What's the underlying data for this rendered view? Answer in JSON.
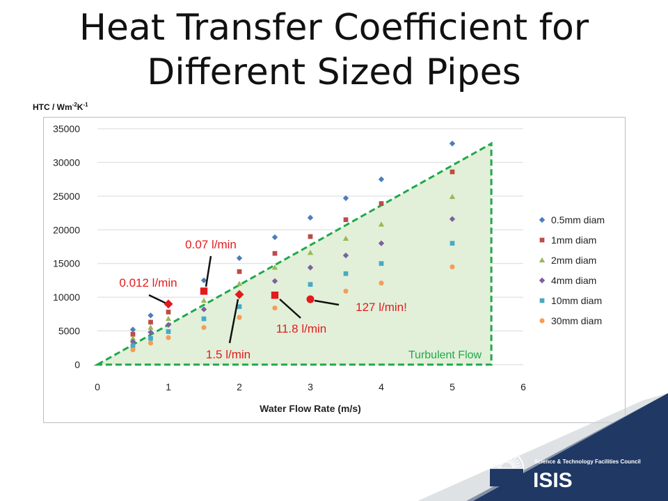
{
  "slide": {
    "title_line1": "Heat Transfer Coefficient for",
    "title_line2": "Different Sized Pipes",
    "y_unit_base": "HTC / Wm",
    "y_unit_sup1": "-2",
    "y_unit_mid": "K",
    "y_unit_sup2": "-1"
  },
  "logo": {
    "org_name": "Science & Technology Facilities Council",
    "brand": "ISIS"
  },
  "colors": {
    "series_0_5mm": "#4a7ebb",
    "series_1mm": "#be4b48",
    "series_2mm": "#98b954",
    "series_4mm": "#7d60a0",
    "series_10mm": "#46aac5",
    "series_30mm": "#f59d56",
    "annotation_red": "#e31a1c",
    "turbulent_fill": "#e2f0d9",
    "turbulent_line": "#1fa84a",
    "band_dark": "#1f3864",
    "band_grey": "#808a94"
  },
  "chart_data": {
    "type": "scatter",
    "xlabel": "Water Flow Rate (m/s)",
    "ylabel": "HTC / Wm-2K-1",
    "xlim": [
      0,
      6
    ],
    "ylim": [
      0,
      35000
    ],
    "xticks": [
      "0",
      "1",
      "2",
      "3",
      "4",
      "5",
      "6"
    ],
    "yticks": [
      "0",
      "5000",
      "10000",
      "15000",
      "20000",
      "25000",
      "30000",
      "35000"
    ],
    "grid": "horizontal",
    "legend_position": "right",
    "x": [
      0.5,
      0.75,
      1,
      1.5,
      2,
      2.5,
      3,
      3.5,
      4,
      5
    ],
    "series": [
      {
        "name": "0.5mm diam",
        "marker": "diamond",
        "values": [
          5200,
          7300,
          9000,
          12500,
          15800,
          18900,
          21800,
          24700,
          27500,
          32800
        ]
      },
      {
        "name": "1mm diam",
        "marker": "square",
        "values": [
          4500,
          6300,
          7800,
          10900,
          13800,
          16500,
          19000,
          21500,
          23900,
          28600
        ]
      },
      {
        "name": "2mm diam",
        "marker": "triangle",
        "values": [
          3900,
          5500,
          6800,
          9500,
          12000,
          14400,
          16600,
          18700,
          20800,
          24900
        ]
      },
      {
        "name": "4mm diam",
        "marker": "diamond",
        "values": [
          3400,
          4800,
          5900,
          8200,
          10400,
          12400,
          14400,
          16200,
          18000,
          21600
        ]
      },
      {
        "name": "10mm diam",
        "marker": "square",
        "values": [
          2800,
          3900,
          4900,
          6800,
          8600,
          10300,
          11900,
          13500,
          15000,
          18000
        ]
      },
      {
        "name": "30mm diam",
        "marker": "circle",
        "values": [
          2200,
          3200,
          4000,
          5500,
          7000,
          8400,
          9700,
          10900,
          12100,
          14500
        ]
      }
    ],
    "highlighted_points": [
      {
        "label": "0.012 l/min",
        "x": 1,
        "y": 9000,
        "marker": "diamond"
      },
      {
        "label": "0.07 l/min",
        "x": 1.5,
        "y": 10900,
        "marker": "square"
      },
      {
        "label": "1.5 l/min",
        "x": 2,
        "y": 10400,
        "marker": "diamond"
      },
      {
        "label": "11.8 l/min",
        "x": 2.5,
        "y": 10300,
        "marker": "square"
      },
      {
        "label": "127 l/min!",
        "x": 3,
        "y": 9700,
        "marker": "circle"
      }
    ],
    "region": {
      "label": "Turbulent Flow",
      "vertices": [
        [
          0,
          0
        ],
        [
          5.55,
          32800
        ],
        [
          5.55,
          0
        ]
      ]
    }
  }
}
